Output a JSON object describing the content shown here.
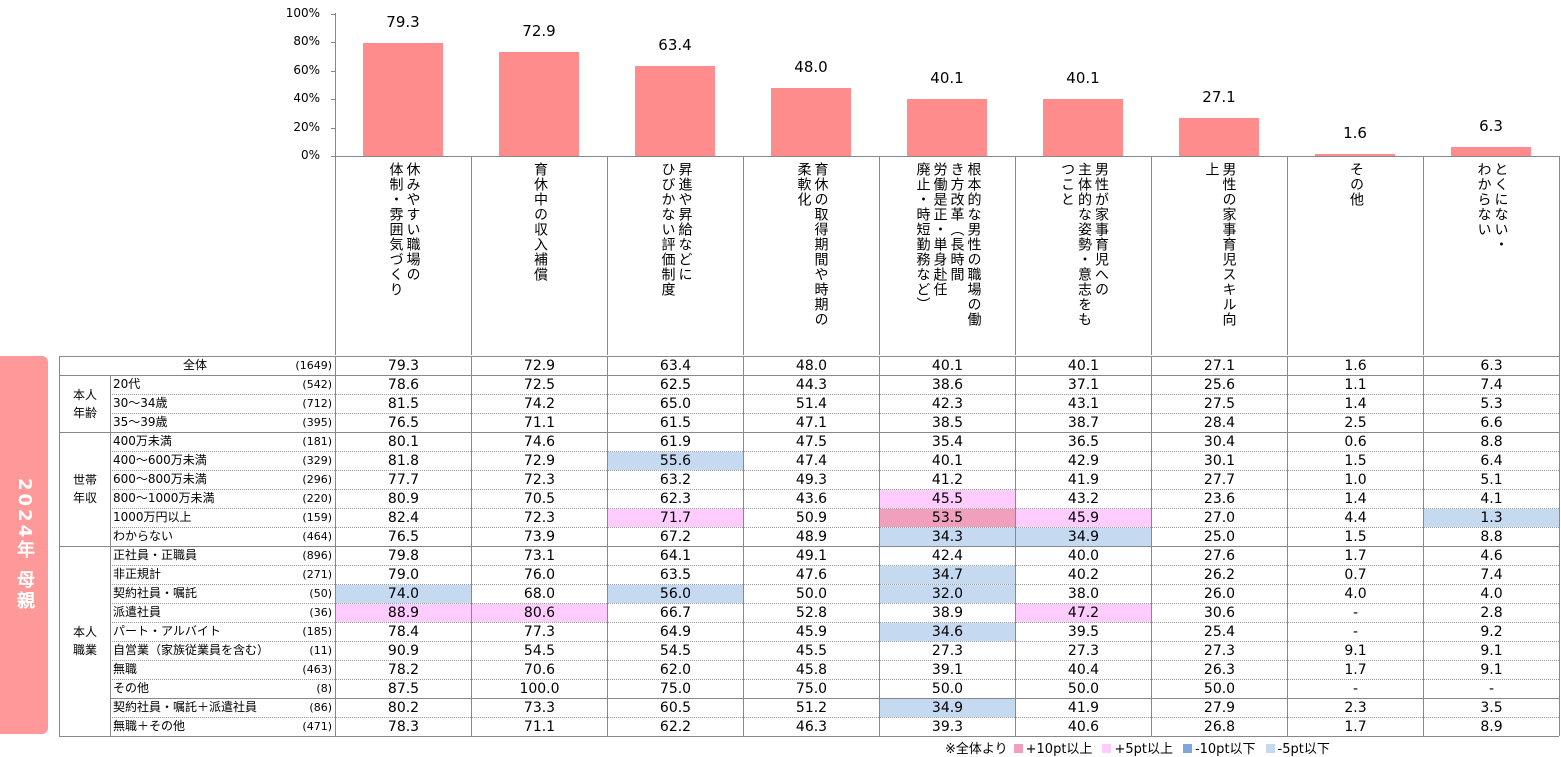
{
  "side_label": "2024年 母親",
  "chart_data": {
    "type": "bar",
    "ylim": [
      0,
      100
    ],
    "yticks": [
      "0%",
      "20%",
      "40%",
      "60%",
      "80%",
      "100%"
    ],
    "categories": [
      [
        "休みやすい職場の",
        "体制・雰囲気づくり"
      ],
      [
        "育休中の収入補償"
      ],
      [
        "昇進や昇給などに",
        "ひびかない評価制度"
      ],
      [
        "育休の取得期間や時期の",
        "柔軟化"
      ],
      [
        "根本的な男性の職場の働",
        "き方改革（長時間",
        "労働是正・単身赴任",
        "廃止・時短勤務など）"
      ],
      [
        "男性が家事育児への",
        "主体的な姿勢・意志をも",
        "つこと"
      ],
      [
        "男性の家事育児スキル向",
        "上"
      ],
      [
        "その他"
      ],
      [
        "とくにない・",
        "わからない"
      ]
    ],
    "values": [
      79.3,
      72.9,
      63.4,
      48.0,
      40.1,
      40.1,
      27.1,
      1.6,
      6.3
    ],
    "value_labels": [
      "79.3",
      "72.9",
      "63.4",
      "48.0",
      "40.1",
      "40.1",
      "27.1",
      "1.6",
      "6.3"
    ],
    "bar_color": "#FF8C8C"
  },
  "groups": [
    {
      "label": "本人\n年齢",
      "start": 1,
      "end": 3
    },
    {
      "label": "世帯\n年収",
      "start": 4,
      "end": 9
    },
    {
      "label": "本人\n職業",
      "start": 10,
      "end": 19
    }
  ],
  "rows": [
    {
      "label": "全体",
      "n": "(1649)",
      "values": [
        "79.3",
        "72.9",
        "63.4",
        "48.0",
        "40.1",
        "40.1",
        "27.1",
        "1.6",
        "6.3"
      ]
    },
    {
      "label": "20代",
      "n": "(542)",
      "values": [
        "78.6",
        "72.5",
        "62.5",
        "44.3",
        "38.6",
        "37.1",
        "25.6",
        "1.1",
        "7.4"
      ]
    },
    {
      "label": "30～34歳",
      "n": "(712)",
      "values": [
        "81.5",
        "74.2",
        "65.0",
        "51.4",
        "42.3",
        "43.1",
        "27.5",
        "1.4",
        "5.3"
      ]
    },
    {
      "label": "35～39歳",
      "n": "(395)",
      "values": [
        "76.5",
        "71.1",
        "61.5",
        "47.1",
        "38.5",
        "38.7",
        "28.4",
        "2.5",
        "6.6"
      ]
    },
    {
      "label": "400万未満",
      "n": "(181)",
      "values": [
        "80.1",
        "74.6",
        "61.9",
        "47.5",
        "35.4",
        "36.5",
        "30.4",
        "0.6",
        "8.8"
      ]
    },
    {
      "label": "400～600万未満",
      "n": "(329)",
      "values": [
        "81.8",
        "72.9",
        "55.6",
        "47.4",
        "40.1",
        "42.9",
        "30.1",
        "1.5",
        "6.4"
      ],
      "hl": {
        "2": "m5"
      }
    },
    {
      "label": "600～800万未満",
      "n": "(296)",
      "values": [
        "77.7",
        "72.3",
        "63.2",
        "49.3",
        "41.2",
        "41.9",
        "27.7",
        "1.0",
        "5.1"
      ]
    },
    {
      "label": "800～1000万未満",
      "n": "(220)",
      "values": [
        "80.9",
        "70.5",
        "62.3",
        "43.6",
        "45.5",
        "43.2",
        "23.6",
        "1.4",
        "4.1"
      ],
      "hl": {
        "4": "p5"
      }
    },
    {
      "label": "1000万円以上",
      "n": "(159)",
      "values": [
        "82.4",
        "72.3",
        "71.7",
        "50.9",
        "53.5",
        "45.9",
        "27.0",
        "4.4",
        "1.3"
      ],
      "hl": {
        "2": "p5",
        "4": "p10",
        "5": "p5",
        "8": "m5"
      }
    },
    {
      "label": "わからない",
      "n": "(464)",
      "values": [
        "76.5",
        "73.9",
        "67.2",
        "48.9",
        "34.3",
        "34.9",
        "25.0",
        "1.5",
        "8.8"
      ],
      "hl": {
        "4": "m5",
        "5": "m5"
      }
    },
    {
      "label": "正社員・正職員",
      "n": "(896)",
      "values": [
        "79.8",
        "73.1",
        "64.1",
        "49.1",
        "42.4",
        "40.0",
        "27.6",
        "1.7",
        "4.6"
      ]
    },
    {
      "label": "非正規計",
      "n": "(271)",
      "values": [
        "79.0",
        "76.0",
        "63.5",
        "47.6",
        "34.7",
        "40.2",
        "26.2",
        "0.7",
        "7.4"
      ],
      "hl": {
        "4": "m5"
      }
    },
    {
      "label": "契約社員・嘱託",
      "n": "(50)",
      "values": [
        "74.0",
        "68.0",
        "56.0",
        "50.0",
        "32.0",
        "38.0",
        "26.0",
        "4.0",
        "4.0"
      ],
      "hl": {
        "0": "m5",
        "2": "m5",
        "4": "m5"
      }
    },
    {
      "label": "派遣社員",
      "n": "(36)",
      "values": [
        "88.9",
        "80.6",
        "66.7",
        "52.8",
        "38.9",
        "47.2",
        "30.6",
        "-",
        "2.8"
      ],
      "hl": {
        "0": "p5",
        "1": "p5",
        "5": "p5"
      }
    },
    {
      "label": "パート・アルバイト",
      "n": "(185)",
      "values": [
        "78.4",
        "77.3",
        "64.9",
        "45.9",
        "34.6",
        "39.5",
        "25.4",
        "-",
        "9.2"
      ],
      "hl": {
        "4": "m5"
      }
    },
    {
      "label": "自営業（家族従業員を含む）",
      "n": "(11)",
      "values": [
        "90.9",
        "54.5",
        "54.5",
        "45.5",
        "27.3",
        "27.3",
        "27.3",
        "9.1",
        "9.1"
      ]
    },
    {
      "label": "無職",
      "n": "(463)",
      "values": [
        "78.2",
        "70.6",
        "62.0",
        "45.8",
        "39.1",
        "40.4",
        "26.3",
        "1.7",
        "9.1"
      ]
    },
    {
      "label": "その他",
      "n": "(8)",
      "values": [
        "87.5",
        "100.0",
        "75.0",
        "75.0",
        "50.0",
        "50.0",
        "50.0",
        "-",
        "-"
      ]
    },
    {
      "label": "契約社員・嘱託＋派遣社員",
      "n": "(86)",
      "values": [
        "80.2",
        "73.3",
        "60.5",
        "51.2",
        "34.9",
        "41.9",
        "27.9",
        "2.3",
        "3.5"
      ],
      "hl": {
        "4": "m5"
      }
    },
    {
      "label": "無職＋その他",
      "n": "(471)",
      "values": [
        "78.3",
        "71.1",
        "62.2",
        "46.3",
        "39.3",
        "40.6",
        "26.8",
        "1.7",
        "8.9"
      ]
    }
  ],
  "legend": {
    "note": "※全体より",
    "items": [
      {
        "key": "p10",
        "label": "+10pt以上",
        "color": "#F0A0BC"
      },
      {
        "key": "p5",
        "label": "+5pt以上",
        "color": "#FFCCFF"
      },
      {
        "key": "m10",
        "label": "-10pt以下",
        "color": "#7FA7DB"
      },
      {
        "key": "m5",
        "label": "-5pt以下",
        "color": "#C5D9F1"
      }
    ]
  }
}
